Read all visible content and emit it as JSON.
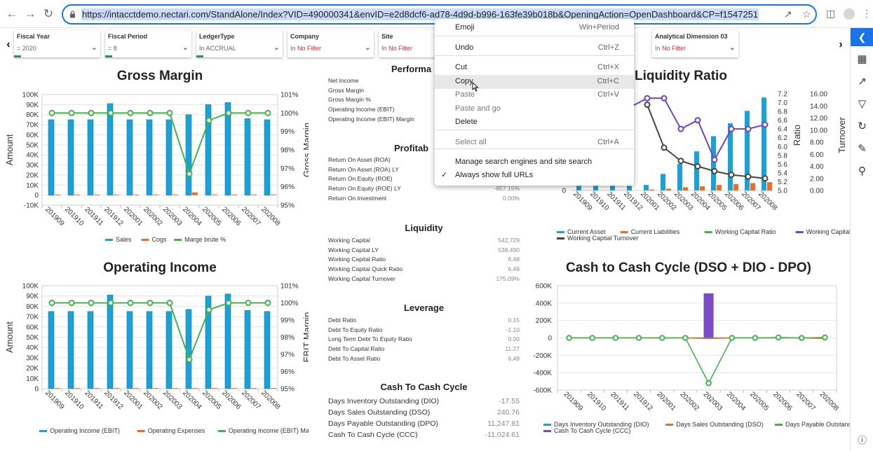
{
  "browser": {
    "url": "https://intacctdemo.nectari.com/StandAlone/Index?VID=490000341&envID=e2d8dcf6-ad78-4d9d-b996-163fe39b018b&OpeningAction=OpenDashboard&CP=f1547251",
    "icons": [
      "back-icon",
      "forward-icon",
      "reload-icon",
      "lock-icon",
      "share-icon",
      "star-icon",
      "sidepanel-icon",
      "profile-icon",
      "menu-icon"
    ]
  },
  "filters": [
    {
      "title": "Fiscal Year",
      "prefix": "=",
      "value": "2020",
      "red": false
    },
    {
      "title": "Fiscal Period",
      "prefix": "=",
      "value": "8",
      "red": false
    },
    {
      "title": "LedgerType",
      "prefix": "In",
      "value": "ACCRUAL",
      "red": false
    },
    {
      "title": "Company",
      "prefix": "In",
      "value": "No Filter",
      "red": true
    },
    {
      "title": "Site",
      "prefix": "In",
      "value": "No Filter",
      "red": true
    },
    {
      "title": "Analytical Dimension 03",
      "prefix": "In",
      "value": "No Filter",
      "red": true
    }
  ],
  "sidebar_icons": [
    "collapse-icon",
    "grid-icon",
    "export-icon",
    "filter-icon",
    "refresh-icon",
    "edit-icon",
    "pin-icon",
    "info-icon"
  ],
  "context_menu": [
    {
      "label": "Emoji",
      "shortcut": "Win+Period",
      "disabled": false
    },
    {
      "label": "Undo",
      "shortcut": "Ctrl+Z",
      "disabled": false
    },
    {
      "label": "Cut",
      "shortcut": "Ctrl+X",
      "disabled": false
    },
    {
      "label": "Copy",
      "shortcut": "Ctrl+C",
      "disabled": false,
      "hover": true
    },
    {
      "label": "Paste",
      "shortcut": "Ctrl+V",
      "disabled": true
    },
    {
      "label": "Paste and go",
      "shortcut": "",
      "disabled": true
    },
    {
      "label": "Delete",
      "shortcut": "",
      "disabled": false
    },
    {
      "label": "Select all",
      "shortcut": "Ctrl+A",
      "disabled": true
    },
    {
      "label": "Manage search engines and site search",
      "shortcut": "",
      "disabled": false
    },
    {
      "label": "Always show full URLs",
      "shortcut": "",
      "disabled": false,
      "checked": true
    }
  ],
  "performance": {
    "title": "Performa",
    "rows": [
      {
        "label": "Net Income",
        "value": ""
      },
      {
        "label": "Gross Margin",
        "value": ""
      },
      {
        "label": "Gross Margin %",
        "value": ""
      },
      {
        "label": "Operating Income (EBIT)",
        "value": ""
      },
      {
        "label": "Operating Income (EBIT) Margin",
        "value": ""
      }
    ]
  },
  "profitability": {
    "title": "Profitab",
    "rows": [
      {
        "label": "Return On Asset (ROA)",
        "value": ""
      },
      {
        "label": "Return On Asset (ROA) LY",
        "value": ""
      },
      {
        "label": "Return On Equity (ROE)",
        "value": ""
      },
      {
        "label": "Return On Equity (ROE) LY",
        "value": "-857.15%"
      },
      {
        "label": "Return On Investment",
        "value": "0.00%"
      }
    ]
  },
  "liquidity": {
    "title": "Liquidity",
    "rows": [
      {
        "label": "Working Capital",
        "value": "542,729"
      },
      {
        "label": "Working Capital LY",
        "value": "538,490"
      },
      {
        "label": "Working Capital Ratio",
        "value": "6.48"
      },
      {
        "label": "Working Capital Quick Ratio",
        "value": "6.49"
      },
      {
        "label": "Working Capital Turnover",
        "value": "175.09%"
      }
    ]
  },
  "leverage": {
    "title": "Leverage",
    "rows": [
      {
        "label": "Debt Ratio",
        "value": "0.15"
      },
      {
        "label": "Debt To Equity Ratio",
        "value": "-1.10"
      },
      {
        "label": "Long Term Debt To Equity Ratio",
        "value": "0.00"
      },
      {
        "label": "Debt To Capital Ratio",
        "value": "11.27"
      },
      {
        "label": "Debt To Asset Ratio",
        "value": "6.48"
      }
    ]
  },
  "cash_cycle_table": {
    "title": "Cash To Cash Cycle",
    "rows": [
      {
        "label": "Days Inventory Outstanding (DIO)",
        "value": "-17.55"
      },
      {
        "label": "Days Sales Outstanding (DSO)",
        "value": "240.76"
      },
      {
        "label": "Days Payable Outstanding (DPO)",
        "value": "11,247.81"
      },
      {
        "label": "Cash To Cash Cycle (CCC)",
        "value": "-11,024.61"
      }
    ]
  },
  "chart_titles": {
    "gross": "Gross Margin",
    "operating": "Operating Income",
    "liquidity": "Liquidity Ratio",
    "cash": "Cash to Cash Cycle (DSO + DIO - DPO)"
  },
  "chart_data": [
    {
      "type": "bar",
      "title": "Gross Margin",
      "categories": [
        "201909",
        "201910",
        "201911",
        "201912",
        "202001",
        "202002",
        "202003",
        "202004",
        "202005",
        "202006",
        "202007",
        "202008"
      ],
      "ylabel": "Amount",
      "y2label": "Gross Margin",
      "ylim": [
        -10000,
        100000
      ],
      "yticks": [
        "100K",
        "90K",
        "80K",
        "70K",
        "60K",
        "50K",
        "40K",
        "30K",
        "20K",
        "10K",
        "0",
        "-10K"
      ],
      "y2lim": [
        95,
        101
      ],
      "y2ticks": [
        "101%",
        "100%",
        "99%",
        "98%",
        "97%",
        "96%",
        "95%"
      ],
      "series": [
        {
          "name": "Sales",
          "type": "bar",
          "color": "#1ba1d6",
          "values": [
            75000,
            75000,
            75000,
            91000,
            75000,
            75000,
            75000,
            80000,
            90000,
            92000,
            76000,
            75000
          ]
        },
        {
          "name": "Cogs",
          "type": "bar",
          "color": "#f26b21",
          "values": [
            0,
            0,
            0,
            0,
            0,
            0,
            0,
            2700,
            0,
            0,
            0,
            0
          ]
        },
        {
          "name": "Marge brute %",
          "type": "line",
          "color": "#3fb54a",
          "values": [
            100,
            100,
            100,
            100,
            100,
            100,
            100,
            96.7,
            99.6,
            100,
            100,
            100
          ]
        }
      ]
    },
    {
      "type": "bar",
      "title": "Operating Income",
      "categories": [
        "201909",
        "201910",
        "201911",
        "201912",
        "202001",
        "202002",
        "202003",
        "202004",
        "202005",
        "202006",
        "202007",
        "202008"
      ],
      "ylabel": "Amount",
      "y2label": "EBIT Margin",
      "ylim": [
        0,
        100000
      ],
      "yticks": [
        "100K",
        "90K",
        "80K",
        "70K",
        "60K",
        "50K",
        "40K",
        "30K",
        "20K",
        "10K",
        "0"
      ],
      "y2lim": [
        95,
        101
      ],
      "y2ticks": [
        "101%",
        "100%",
        "99%",
        "98%",
        "97%",
        "96%",
        "95%"
      ],
      "series": [
        {
          "name": "Operating Income (EBIT)",
          "type": "bar",
          "color": "#1ba1d6",
          "values": [
            75000,
            75000,
            75000,
            91000,
            75000,
            75000,
            75000,
            77000,
            90000,
            92000,
            76000,
            75000
          ]
        },
        {
          "name": "Operating Expenses",
          "type": "bar",
          "color": "#f26b21",
          "values": [
            0,
            0,
            0,
            0,
            0,
            0,
            0,
            0,
            0,
            0,
            0,
            0
          ]
        },
        {
          "name": "Operating Income (EBIT) Margin",
          "type": "line",
          "color": "#3fb54a",
          "values": [
            100,
            100,
            100,
            100,
            100,
            100,
            100,
            96.7,
            99.6,
            100,
            100,
            100
          ]
        }
      ]
    },
    {
      "type": "bar",
      "title": "Liquidity Ratio",
      "categories": [
        "201909",
        "201910",
        "201911",
        "201912",
        "202001",
        "202002",
        "202003",
        "202004",
        "202005",
        "202006",
        "202007",
        "202008"
      ],
      "ylabel": "",
      "y2label": "Ratio",
      "y3label": "Turnover",
      "yticks": [
        "0"
      ],
      "y2lim": [
        5.0,
        7.2
      ],
      "y2ticks": [
        "7.2",
        "7.0",
        "6.8",
        "6.6",
        "6.4",
        "6.2",
        "6.0",
        "5.8",
        "5.6",
        "5.4",
        "5.2",
        "5.0"
      ],
      "y3lim": [
        0,
        16
      ],
      "y3ticks": [
        "16.00",
        "14.00",
        "12.00",
        "10.00",
        "8.00",
        "6.00",
        "4.00",
        "2.00",
        "0.00"
      ],
      "series": [
        {
          "name": "Current Asset",
          "type": "bar",
          "color": "#1ba1d6",
          "values": [
            1,
            1,
            1,
            1,
            1.2,
            3.6,
            5.8,
            8.5,
            11.8,
            14.6,
            17.3,
            20.2
          ]
        },
        {
          "name": "Current Liabilities",
          "type": "bar",
          "color": "#f26b21",
          "values": [
            0,
            0,
            0,
            0,
            0.2,
            0.4,
            0.7,
            0.9,
            1.2,
            1.4,
            1.6,
            1.8
          ]
        },
        {
          "name": "Working Capital Ratio",
          "type": "line",
          "color": "#3fb54a",
          "values": [
            null,
            null,
            null,
            null,
            null,
            null,
            null,
            null,
            null,
            null,
            null,
            null
          ]
        },
        {
          "name": "Working Capital Quick Ratio",
          "type": "line",
          "color": "#6f43bd",
          "values": [
            null,
            null,
            null,
            6.9,
            7.1,
            7.1,
            6.4,
            6.6,
            5.7,
            6.4,
            6.4,
            6.5
          ]
        },
        {
          "name": "Working Captial Turnover",
          "type": "line",
          "color": "#444444",
          "values": [
            null,
            null,
            null,
            null,
            14.2,
            7.1,
            4.9,
            4.0,
            3.2,
            2.6,
            2.3,
            2.0
          ]
        }
      ]
    },
    {
      "type": "bar",
      "title": "Cash to Cash Cycle (DSO + DIO - DPO)",
      "categories": [
        "201909",
        "201910",
        "201911",
        "201912",
        "202001",
        "202002",
        "202003",
        "202004",
        "202005",
        "202006",
        "202007",
        "202008"
      ],
      "ylabel": "",
      "ylim": [
        -600000,
        600000
      ],
      "yticks": [
        "600K",
        "400K",
        "200K",
        "0",
        "-200K",
        "-400K",
        "-600K"
      ],
      "series": [
        {
          "name": "Days Inventory Outstanding (DIO)",
          "type": "line",
          "color": "#1ba1d6",
          "values": [
            0,
            0,
            0,
            0,
            0,
            0,
            0,
            0,
            0,
            0,
            0,
            0
          ]
        },
        {
          "name": "Days Sales Outstanding (DSO)",
          "type": "line",
          "color": "#f26b21",
          "values": [
            0,
            0,
            0,
            0,
            0,
            0,
            -8000,
            0,
            0,
            0,
            0,
            -8000
          ]
        },
        {
          "name": "Days Payable Outstanding (DPO)",
          "type": "line",
          "color": "#3fb54a",
          "values": [
            0,
            0,
            0,
            0,
            0,
            0,
            -520000,
            0,
            0,
            5000,
            0,
            5000
          ]
        },
        {
          "name": "Cash To Cash Cycle (CCC)",
          "type": "bar",
          "color": "#7b4bc6",
          "values": [
            0,
            0,
            0,
            0,
            0,
            0,
            512000,
            0,
            0,
            0,
            0,
            0
          ]
        }
      ]
    }
  ]
}
